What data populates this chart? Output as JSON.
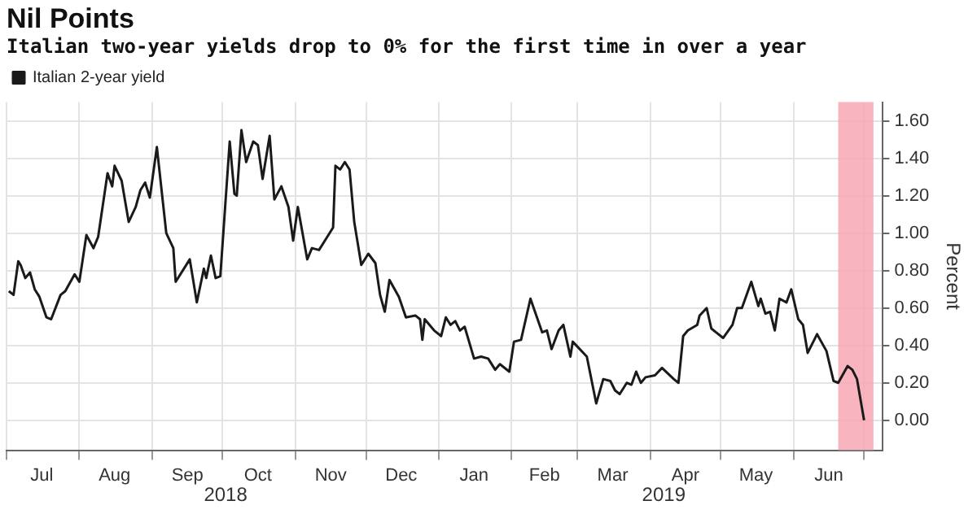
{
  "chart_data": {
    "type": "line",
    "title": "Nil Points",
    "subtitle": "Italian two-year yields drop to 0% for the first time in over a year",
    "ylabel": "Percent",
    "series": [
      {
        "name": "Italian 2-year yield",
        "color": "#1a1a1a",
        "x": [
          "2018-07-02",
          "2018-07-04",
          "2018-07-06",
          "2018-07-07",
          "2018-07-09",
          "2018-07-11",
          "2018-07-13",
          "2018-07-15",
          "2018-07-18",
          "2018-07-20",
          "2018-07-24",
          "2018-07-26",
          "2018-07-30",
          "2018-08-01",
          "2018-08-04",
          "2018-08-07",
          "2018-08-09",
          "2018-08-13",
          "2018-08-15",
          "2018-08-16",
          "2018-08-19",
          "2018-08-22",
          "2018-08-25",
          "2018-08-27",
          "2018-08-29",
          "2018-08-31",
          "2018-09-03",
          "2018-09-07",
          "2018-09-10",
          "2018-09-11",
          "2018-09-17",
          "2018-09-20",
          "2018-09-23",
          "2018-09-24",
          "2018-09-26",
          "2018-09-28",
          "2018-09-30",
          "2018-10-04",
          "2018-10-06",
          "2018-10-07",
          "2018-10-09",
          "2018-10-11",
          "2018-10-14",
          "2018-10-16",
          "2018-10-18",
          "2018-10-21",
          "2018-10-23",
          "2018-10-26",
          "2018-10-29",
          "2018-10-31",
          "2018-11-02",
          "2018-11-06",
          "2018-11-08",
          "2018-11-11",
          "2018-11-13",
          "2018-11-17",
          "2018-11-18",
          "2018-11-20",
          "2018-11-22",
          "2018-11-24",
          "2018-11-26",
          "2018-11-29",
          "2018-12-02",
          "2018-12-05",
          "2018-12-07",
          "2018-12-09",
          "2018-12-11",
          "2018-12-15",
          "2018-12-18",
          "2018-12-22",
          "2018-12-24",
          "2018-12-25",
          "2018-12-26",
          "2018-12-30",
          "2019-01-02",
          "2019-01-04",
          "2019-01-06",
          "2019-01-08",
          "2019-01-10",
          "2019-01-12",
          "2019-01-16",
          "2019-01-19",
          "2019-01-22",
          "2019-01-25",
          "2019-01-27",
          "2019-01-31",
          "2019-02-02",
          "2019-02-05",
          "2019-02-09",
          "2019-02-14",
          "2019-02-16",
          "2019-02-18",
          "2019-02-21",
          "2019-02-23",
          "2019-02-26",
          "2019-02-27",
          "2019-03-05",
          "2019-03-09",
          "2019-03-12",
          "2019-03-15",
          "2019-03-17",
          "2019-03-19",
          "2019-03-22",
          "2019-03-24",
          "2019-03-26",
          "2019-03-28",
          "2019-03-30",
          "2019-04-03",
          "2019-04-06",
          "2019-04-11",
          "2019-04-13",
          "2019-04-15",
          "2019-04-17",
          "2019-04-21",
          "2019-04-22",
          "2019-04-25",
          "2019-04-27",
          "2019-04-29",
          "2019-05-02",
          "2019-05-06",
          "2019-05-08",
          "2019-05-10",
          "2019-05-14",
          "2019-05-17",
          "2019-05-18",
          "2019-05-20",
          "2019-05-22",
          "2019-05-24",
          "2019-05-26",
          "2019-05-29",
          "2019-05-31",
          "2019-06-03",
          "2019-06-05",
          "2019-06-07",
          "2019-06-11",
          "2019-06-15",
          "2019-06-18",
          "2019-06-20",
          "2019-06-24",
          "2019-06-26",
          "2019-06-28",
          "2019-07-01"
        ],
        "values": [
          0.69,
          0.67,
          0.85,
          0.83,
          0.76,
          0.79,
          0.7,
          0.66,
          0.55,
          0.54,
          0.67,
          0.69,
          0.78,
          0.74,
          0.99,
          0.92,
          0.98,
          1.32,
          1.25,
          1.36,
          1.28,
          1.06,
          1.14,
          1.23,
          1.27,
          1.19,
          1.46,
          1.0,
          0.92,
          0.74,
          0.86,
          0.63,
          0.81,
          0.76,
          0.88,
          0.76,
          0.77,
          1.49,
          1.21,
          1.2,
          1.55,
          1.38,
          1.49,
          1.47,
          1.29,
          1.52,
          1.18,
          1.25,
          1.14,
          0.96,
          1.14,
          0.86,
          0.92,
          0.91,
          0.95,
          1.03,
          1.36,
          1.34,
          1.38,
          1.34,
          1.06,
          0.83,
          0.89,
          0.84,
          0.67,
          0.58,
          0.75,
          0.66,
          0.55,
          0.56,
          0.54,
          0.43,
          0.54,
          0.48,
          0.45,
          0.55,
          0.51,
          0.53,
          0.48,
          0.5,
          0.33,
          0.34,
          0.33,
          0.27,
          0.3,
          0.26,
          0.42,
          0.43,
          0.65,
          0.47,
          0.48,
          0.38,
          0.48,
          0.51,
          0.34,
          0.42,
          0.34,
          0.09,
          0.22,
          0.21,
          0.16,
          0.14,
          0.2,
          0.19,
          0.26,
          0.2,
          0.23,
          0.24,
          0.28,
          0.22,
          0.2,
          0.45,
          0.48,
          0.51,
          0.56,
          0.6,
          0.49,
          0.47,
          0.44,
          0.51,
          0.6,
          0.6,
          0.74,
          0.61,
          0.65,
          0.57,
          0.58,
          0.48,
          0.65,
          0.63,
          0.7,
          0.54,
          0.51,
          0.36,
          0.46,
          0.37,
          0.21,
          0.2,
          0.29,
          0.27,
          0.22,
          0.0
        ]
      }
    ],
    "xlim": [
      "2018-07-01",
      "2019-07-09"
    ],
    "xticks": [
      {
        "value": "2018-07-01",
        "label": null
      },
      {
        "value": "2018-07-16",
        "label": "Jul"
      },
      {
        "value": "2018-08-01",
        "label": null
      },
      {
        "value": "2018-08-16",
        "label": "Aug"
      },
      {
        "value": "2018-09-01",
        "label": null
      },
      {
        "value": "2018-09-16",
        "label": "Sep"
      },
      {
        "value": "2018-10-01",
        "label": null
      },
      {
        "value": "2018-10-16",
        "label": "Oct"
      },
      {
        "value": "2018-11-01",
        "label": null
      },
      {
        "value": "2018-11-16",
        "label": "Nov"
      },
      {
        "value": "2018-12-01",
        "label": null
      },
      {
        "value": "2018-12-16",
        "label": "Dec"
      },
      {
        "value": "2019-01-01",
        "label": null
      },
      {
        "value": "2019-01-16",
        "label": "Jan"
      },
      {
        "value": "2019-02-01",
        "label": null
      },
      {
        "value": "2019-02-15",
        "label": "Feb"
      },
      {
        "value": "2019-03-01",
        "label": null
      },
      {
        "value": "2019-03-16",
        "label": "Mar"
      },
      {
        "value": "2019-04-01",
        "label": null
      },
      {
        "value": "2019-04-16",
        "label": "Apr"
      },
      {
        "value": "2019-05-01",
        "label": null
      },
      {
        "value": "2019-05-16",
        "label": "May"
      },
      {
        "value": "2019-06-01",
        "label": null
      },
      {
        "value": "2019-06-16",
        "label": "Jun"
      },
      {
        "value": "2019-07-01",
        "label": null
      }
    ],
    "ylim": [
      -0.16,
      1.7
    ],
    "yticks": [
      {
        "value": 0,
        "label": "0.00"
      },
      {
        "value": 0.2,
        "label": "0.20"
      },
      {
        "value": 0.4,
        "label": "0.40"
      },
      {
        "value": 0.6,
        "label": "0.60"
      },
      {
        "value": 0.8,
        "label": "0.80"
      },
      {
        "value": 1,
        "label": "1.00"
      },
      {
        "value": 1.2,
        "label": "1.20"
      },
      {
        "value": 1.4,
        "label": "1.40"
      },
      {
        "value": 1.6,
        "label": "1.60"
      }
    ],
    "bands": [
      {
        "axis": "x",
        "from": "2019-06-20",
        "to": "2019-07-05",
        "color": "#f7a8b4"
      }
    ],
    "annotations": [
      "2018",
      "2019"
    ],
    "grid": true,
    "legend": "top left",
    "marker": "none",
    "line_style": "solid"
  }
}
